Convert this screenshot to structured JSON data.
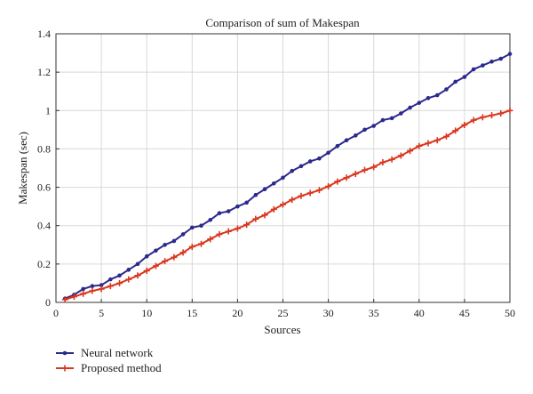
{
  "chart_data": {
    "type": "line",
    "title": "Comparison of sum of Makespan",
    "xlabel": "Sources",
    "ylabel": "Makespan (sec)",
    "xlim": [
      0,
      50
    ],
    "ylim": [
      0,
      1.4
    ],
    "xticks": [
      0,
      5,
      10,
      15,
      20,
      25,
      30,
      35,
      40,
      45,
      50
    ],
    "yticks": [
      0,
      0.2,
      0.4,
      0.6,
      0.8,
      1,
      1.2,
      1.4
    ],
    "grid": true,
    "legend_position": "bottom-left",
    "x": [
      1,
      2,
      3,
      4,
      5,
      6,
      7,
      8,
      9,
      10,
      11,
      12,
      13,
      14,
      15,
      16,
      17,
      18,
      19,
      20,
      21,
      22,
      23,
      24,
      25,
      26,
      27,
      28,
      29,
      30,
      31,
      32,
      33,
      34,
      35,
      36,
      37,
      38,
      39,
      40,
      41,
      42,
      43,
      44,
      45,
      46,
      47,
      48,
      49,
      50
    ],
    "series": [
      {
        "name": "Neural network",
        "color": "#2b2a8c",
        "marker": "dot",
        "values": [
          0.02,
          0.04,
          0.07,
          0.085,
          0.09,
          0.12,
          0.14,
          0.17,
          0.2,
          0.24,
          0.27,
          0.3,
          0.32,
          0.355,
          0.39,
          0.4,
          0.43,
          0.465,
          0.475,
          0.5,
          0.52,
          0.56,
          0.59,
          0.62,
          0.65,
          0.685,
          0.71,
          0.735,
          0.75,
          0.78,
          0.815,
          0.845,
          0.87,
          0.9,
          0.92,
          0.95,
          0.96,
          0.985,
          1.015,
          1.04,
          1.065,
          1.08,
          1.11,
          1.15,
          1.175,
          1.215,
          1.235,
          1.255,
          1.27,
          1.295
        ]
      },
      {
        "name": "Proposed method",
        "color": "#d9371e",
        "marker": "plus",
        "values": [
          0.015,
          0.03,
          0.045,
          0.06,
          0.07,
          0.085,
          0.1,
          0.12,
          0.14,
          0.165,
          0.19,
          0.215,
          0.235,
          0.26,
          0.29,
          0.305,
          0.33,
          0.355,
          0.37,
          0.385,
          0.405,
          0.435,
          0.455,
          0.485,
          0.51,
          0.535,
          0.555,
          0.57,
          0.585,
          0.605,
          0.63,
          0.65,
          0.67,
          0.69,
          0.705,
          0.73,
          0.745,
          0.765,
          0.79,
          0.815,
          0.83,
          0.845,
          0.865,
          0.895,
          0.925,
          0.95,
          0.965,
          0.975,
          0.985,
          1.0
        ]
      }
    ]
  }
}
